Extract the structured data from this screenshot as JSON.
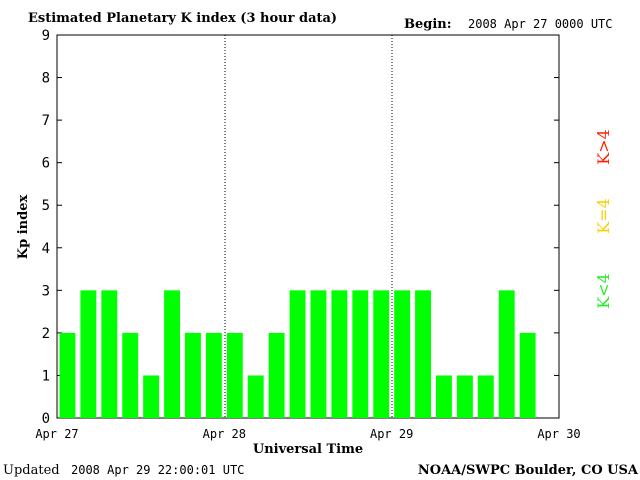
{
  "header": {
    "title": "Estimated Planetary K index (3 hour data)",
    "begin_label": "Begin:",
    "begin_value": "2008 Apr 27 0000 UTC"
  },
  "footer": {
    "updated_label": "Updated",
    "updated_value": "2008 Apr 29 22:00:01 UTC",
    "source": "NOAA/SWPC Boulder, CO USA"
  },
  "legend": {
    "gt4": {
      "label": "K>4",
      "color": "#ff2200"
    },
    "eq4": {
      "label": "K=4",
      "color": "#ffcc00"
    },
    "lt4": {
      "label": "K<4",
      "color": "#22ee22"
    }
  },
  "chart_data": {
    "type": "bar",
    "title": "Estimated Planetary K index (3 hour data)",
    "xlabel": "Universal Time",
    "ylabel": "Kp index",
    "ylim": [
      0,
      9
    ],
    "yticks": [
      0,
      1,
      2,
      3,
      4,
      5,
      6,
      7,
      8,
      9
    ],
    "x_tick_labels": [
      "Apr 27",
      "Apr 28",
      "Apr 29",
      "Apr 30"
    ],
    "x_interval_hours": 3,
    "day_separators": [
      "Apr 28",
      "Apr 29"
    ],
    "bar_color": "#00ff00",
    "values": [
      2,
      3,
      3,
      2,
      1,
      3,
      2,
      2,
      2,
      1,
      2,
      3,
      3,
      3,
      3,
      3,
      3,
      3,
      1,
      1,
      1,
      3,
      2
    ]
  }
}
